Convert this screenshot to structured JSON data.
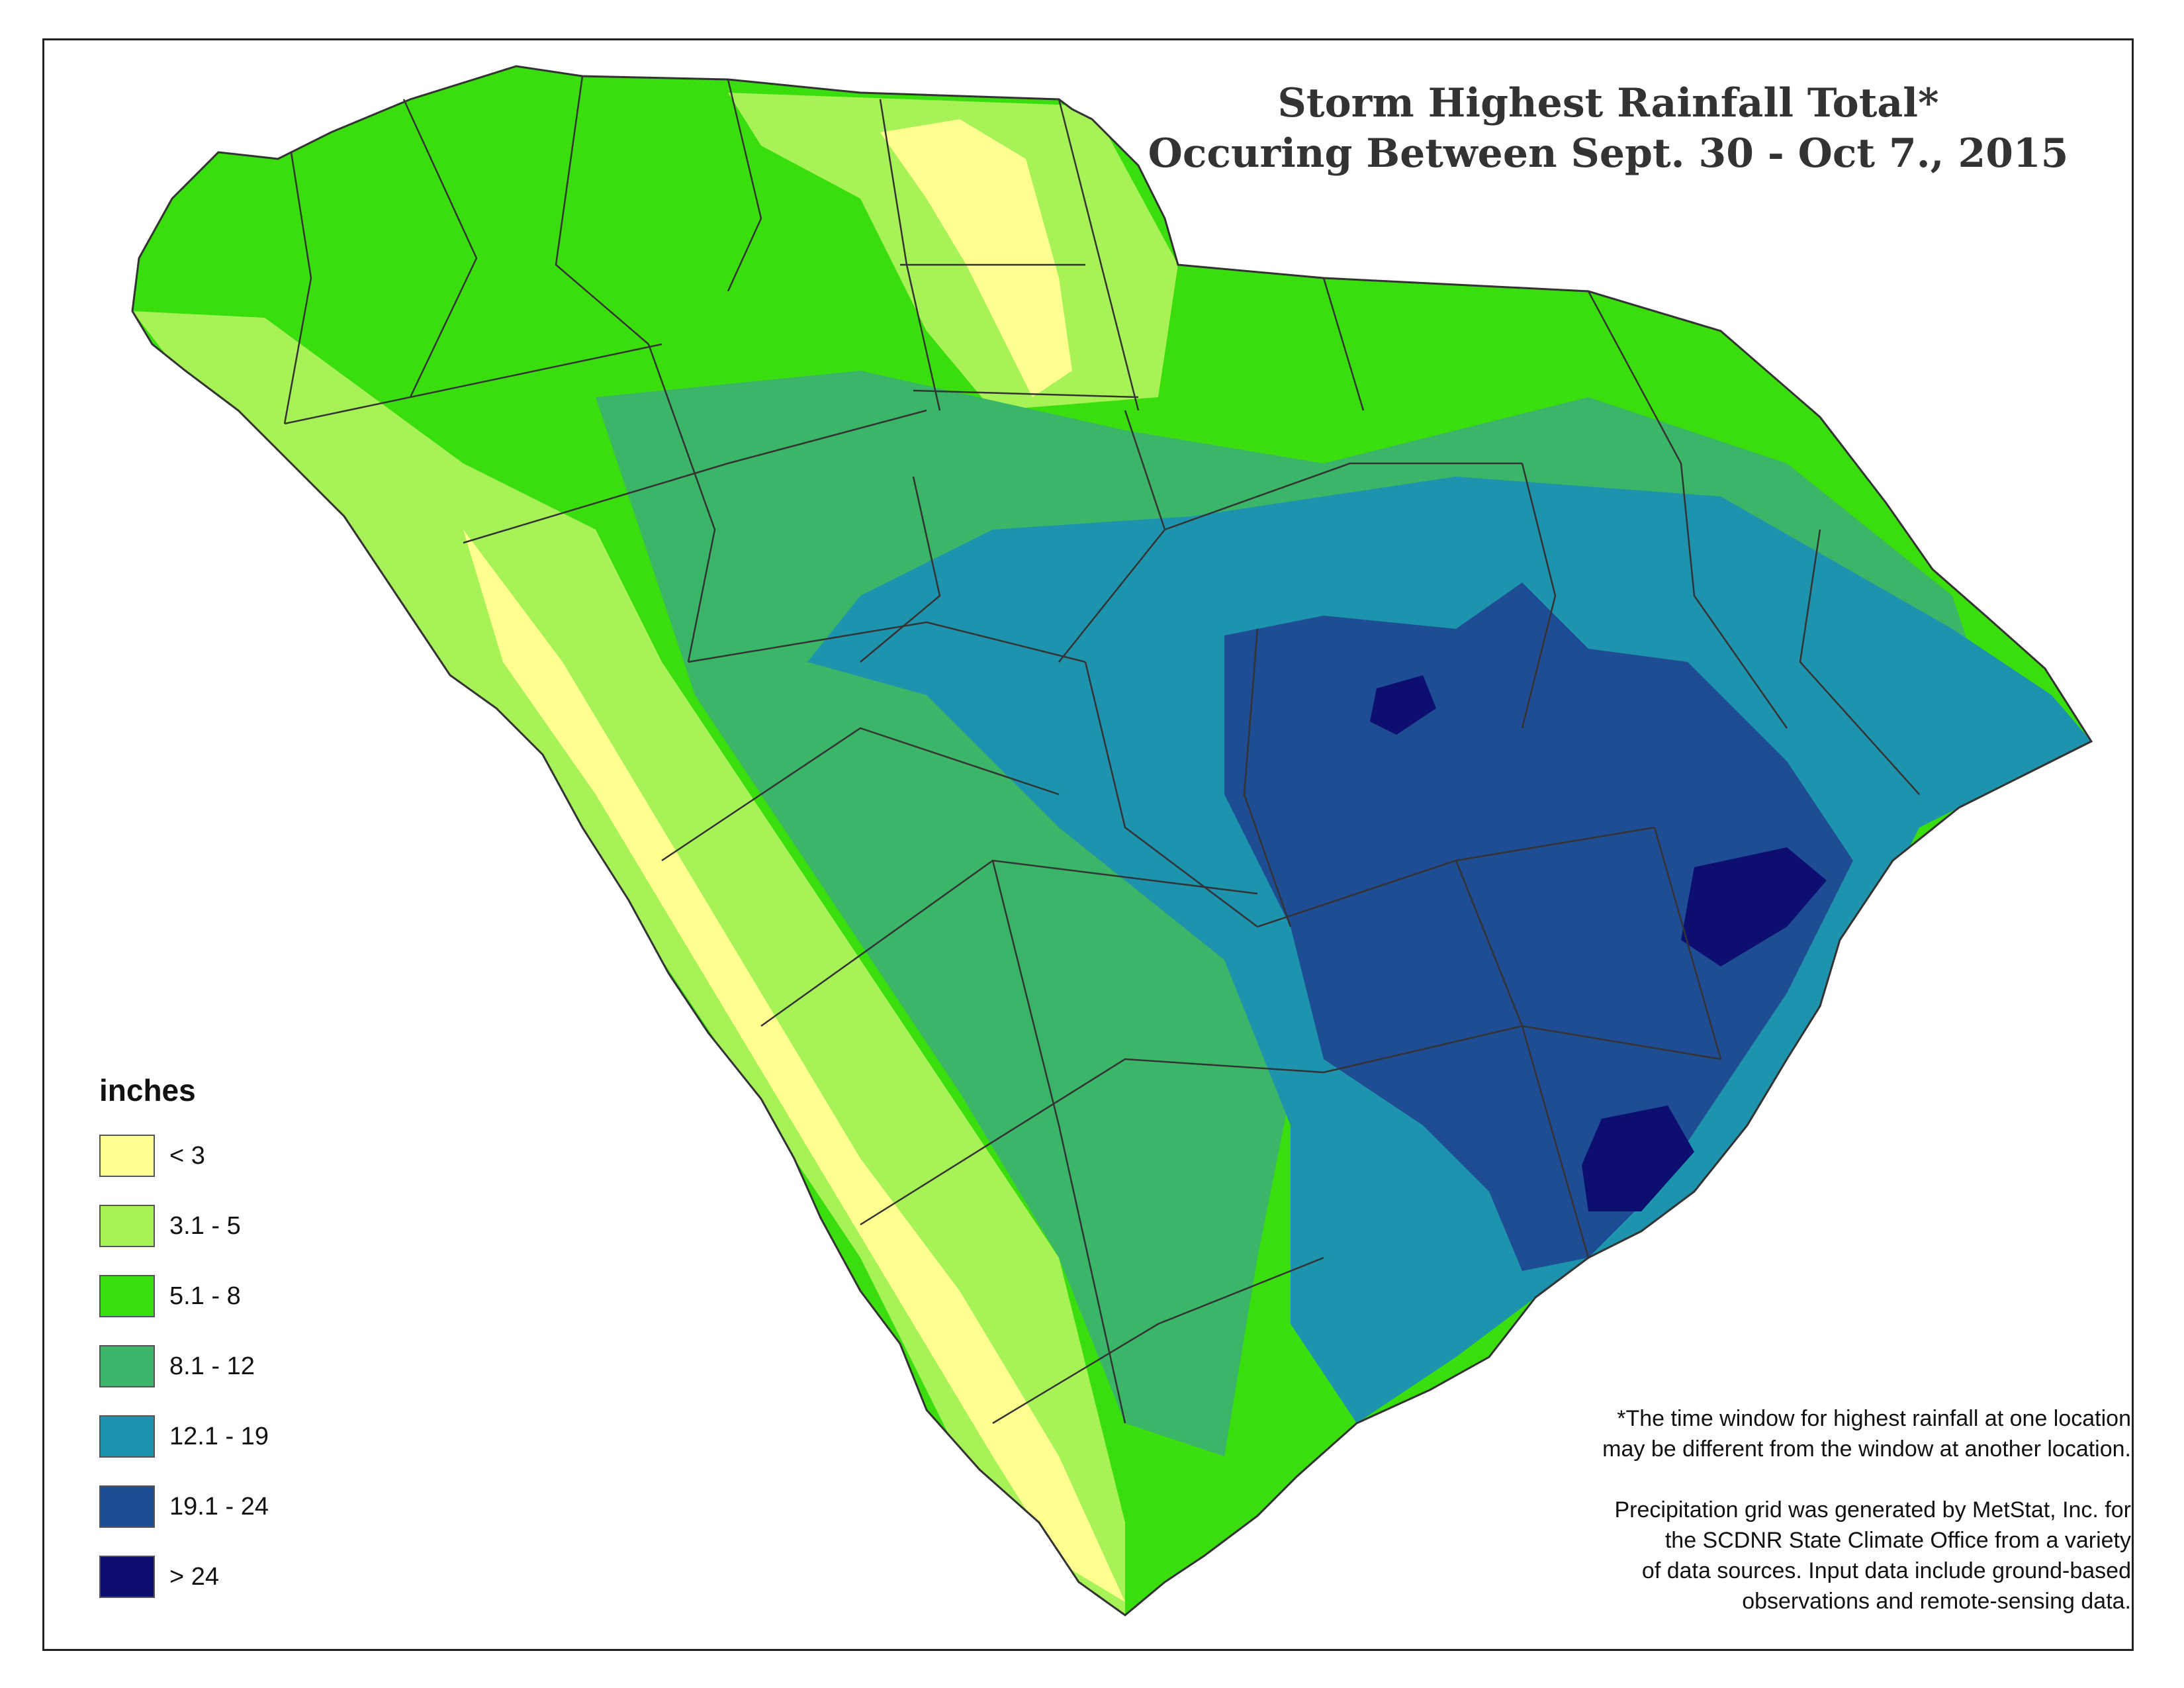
{
  "title": {
    "line1": "Storm Highest Rainfall Total*",
    "line2": "Occuring Between Sept. 30 - Oct 7., 2015"
  },
  "legend": {
    "title": "inches",
    "classes": [
      {
        "label": "< 3",
        "color": "#FFFF8F"
      },
      {
        "label": "3.1 - 5",
        "color": "#A6F257"
      },
      {
        "label": "5.1 - 8",
        "color": "#3ADE0C"
      },
      {
        "label": "8.1 - 12",
        "color": "#3BB567"
      },
      {
        "label": "12.1 - 19",
        "color": "#1E93AE"
      },
      {
        "label": "19.1 - 24",
        "color": "#1E4D94"
      },
      {
        "label": "> 24",
        "color": "#0C0E70"
      }
    ]
  },
  "notes": {
    "footnote_line1": "*The time window for highest rainfall at one location",
    "footnote_line2": "may be different from the window at another location.",
    "source_line1": "Precipitation grid was generated by MetStat, Inc. for",
    "source_line2": "the SCDNR State Climate Office from a variety",
    "source_line3": "of data sources. Input data include ground-based",
    "source_line4": "observations and remote-sensing data."
  },
  "colors": {
    "county_lines": "#333333",
    "frame": "#222222"
  }
}
